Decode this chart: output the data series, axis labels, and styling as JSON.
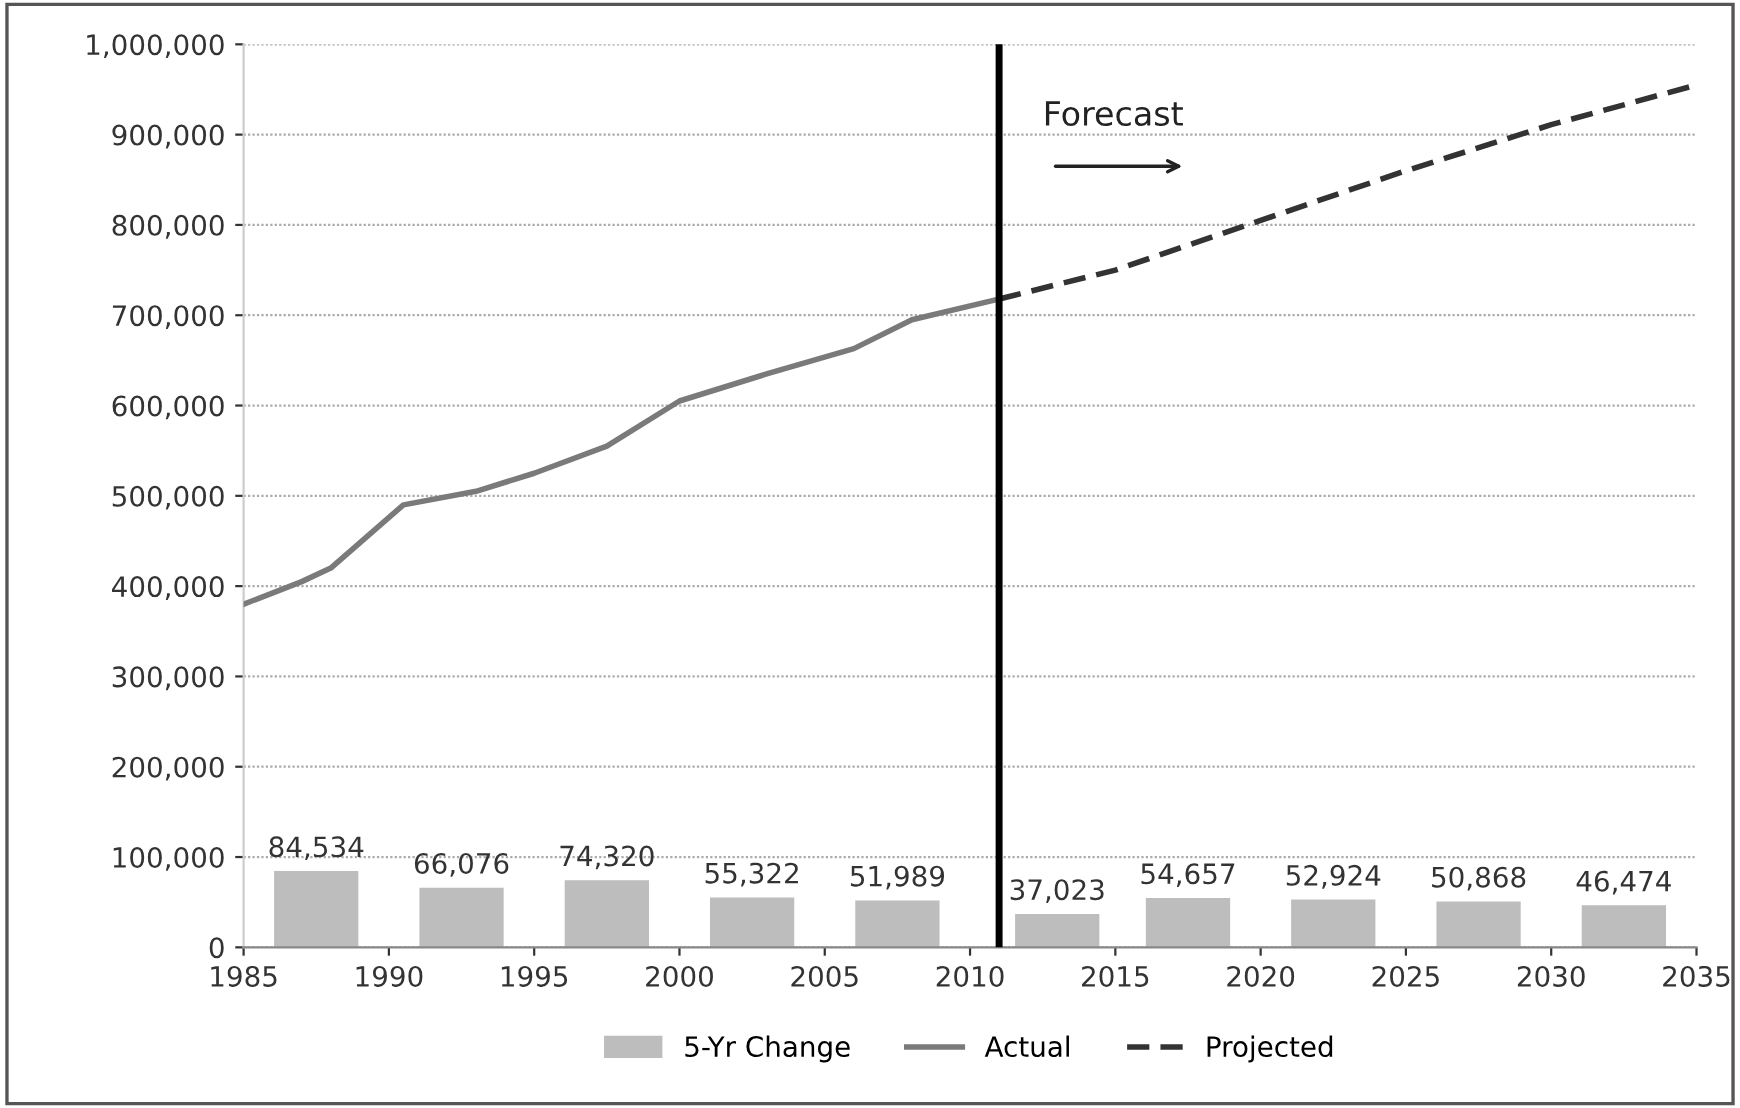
{
  "chart_data": {
    "type": "line",
    "xlim": [
      1985,
      2035
    ],
    "xticks": [
      1985,
      1990,
      1995,
      2000,
      2005,
      2010,
      2015,
      2020,
      2025,
      2030,
      2035
    ],
    "ylim": [
      0,
      1000000
    ],
    "yticks": [
      {
        "value": 0,
        "label": "0"
      },
      {
        "value": 100000,
        "label": "100,000"
      },
      {
        "value": 200000,
        "label": "200,000"
      },
      {
        "value": 300000,
        "label": "300,000"
      },
      {
        "value": 400000,
        "label": "400,000"
      },
      {
        "value": 500000,
        "label": "500,000"
      },
      {
        "value": 600000,
        "label": "600,000"
      },
      {
        "value": 700000,
        "label": "700,000"
      },
      {
        "value": 800000,
        "label": "800,000"
      },
      {
        "value": 900000,
        "label": "900,000"
      },
      {
        "value": 1000000,
        "label": "1,000,000"
      }
    ],
    "grid": "y",
    "legend": "bottom",
    "series": [
      {
        "name": "5-Yr Change",
        "type": "bar",
        "color": "#bdbdbd",
        "x": [
          1987.5,
          1992.5,
          1997.5,
          2002.5,
          2007.5,
          2013,
          2017.5,
          2022.5,
          2027.5,
          2032.5
        ],
        "values": [
          84534,
          66076,
          74320,
          55322,
          51989,
          37023,
          54657,
          52924,
          50868,
          46474
        ],
        "value_labels": [
          "84,534",
          "66,076",
          "74,320",
          "55,322",
          "51,989",
          "37,023",
          "54,657",
          "52,924",
          "50,868",
          "46,474"
        ]
      },
      {
        "name": "Actual",
        "color": "#7a7a7a",
        "line_style": "solid",
        "x": [
          1985,
          1987,
          1988,
          1990.5,
          1993,
          1995,
          1997.5,
          2000,
          2003,
          2006,
          2008,
          2011
        ],
        "values": [
          380000,
          405000,
          420000,
          490000,
          505000,
          525000,
          555000,
          605000,
          635000,
          663000,
          695000,
          718000
        ]
      },
      {
        "name": "Projected",
        "color": "#333333",
        "line_style": "dashed",
        "x": [
          2011,
          2015,
          2020,
          2025,
          2030,
          2035
        ],
        "values": [
          718000,
          750000,
          805000,
          860000,
          911000,
          955000
        ]
      }
    ],
    "ref_lines": [
      {
        "axis": "x",
        "value": 2011,
        "color": "#000000"
      }
    ],
    "annotations": [
      "Forecast"
    ]
  }
}
